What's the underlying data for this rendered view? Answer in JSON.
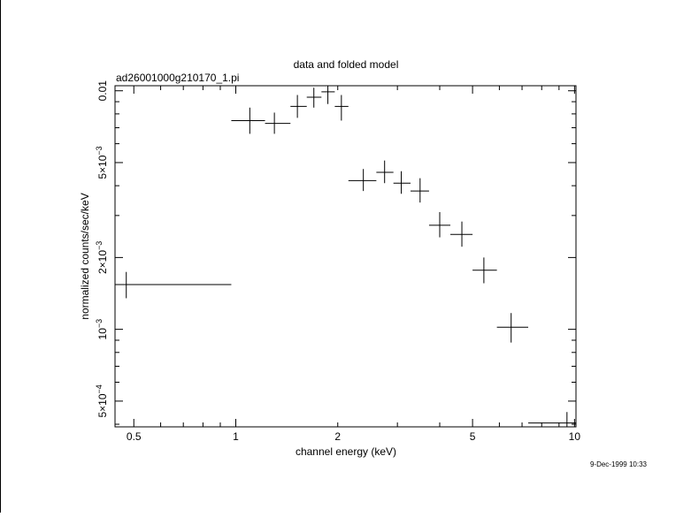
{
  "chart_data": {
    "type": "scatter",
    "title": "data and folded model",
    "subtitle": "ad26001000g210170_1.pi",
    "xlabel": "channel energy (keV)",
    "ylabel": "normalized counts/sec/keV",
    "x_scale": "log",
    "y_scale": "log",
    "xlim": [
      0.44,
      10.1
    ],
    "ylim": [
      0.00039,
      0.0105
    ],
    "grid": false,
    "x_ticks": [
      {
        "value": 0.5,
        "label": "0.5"
      },
      {
        "value": 1,
        "label": "1"
      },
      {
        "value": 2,
        "label": "2"
      },
      {
        "value": 5,
        "label": "5"
      },
      {
        "value": 10,
        "label": "10"
      }
    ],
    "y_ticks": [
      {
        "value": 0.01,
        "label": "0.01"
      },
      {
        "value": 0.005,
        "label": "5×10",
        "exp": "−3"
      },
      {
        "value": 0.002,
        "label": "2×10",
        "exp": "−3"
      },
      {
        "value": 0.001,
        "label": "10",
        "exp": "−3"
      },
      {
        "value": 0.0005,
        "label": "5×10",
        "exp": "−4"
      }
    ],
    "points": [
      {
        "x": 0.475,
        "x_lo": 0.44,
        "x_hi": 0.97,
        "y": 0.00154,
        "y_lo": 0.00135,
        "y_hi": 0.00174
      },
      {
        "x": 1.1,
        "x_lo": 0.97,
        "x_hi": 1.22,
        "y": 0.0075,
        "y_lo": 0.0066,
        "y_hi": 0.0085
      },
      {
        "x": 1.3,
        "x_lo": 1.22,
        "x_hi": 1.45,
        "y": 0.0073,
        "y_lo": 0.0066,
        "y_hi": 0.0081
      },
      {
        "x": 1.52,
        "x_lo": 1.45,
        "x_hi": 1.62,
        "y": 0.0086,
        "y_lo": 0.0077,
        "y_hi": 0.0096
      },
      {
        "x": 1.7,
        "x_lo": 1.62,
        "x_hi": 1.79,
        "y": 0.0094,
        "y_lo": 0.0085,
        "y_hi": 0.0103
      },
      {
        "x": 1.87,
        "x_lo": 1.79,
        "x_hi": 1.96,
        "y": 0.0099,
        "y_lo": 0.0088,
        "y_hi": 0.0109
      },
      {
        "x": 2.05,
        "x_lo": 1.96,
        "x_hi": 2.15,
        "y": 0.0086,
        "y_lo": 0.0075,
        "y_hi": 0.0096
      },
      {
        "x": 2.38,
        "x_lo": 2.15,
        "x_hi": 2.6,
        "y": 0.0042,
        "y_lo": 0.0038,
        "y_hi": 0.0047
      },
      {
        "x": 2.75,
        "x_lo": 2.6,
        "x_hi": 2.92,
        "y": 0.00455,
        "y_lo": 0.0041,
        "y_hi": 0.0051
      },
      {
        "x": 3.08,
        "x_lo": 2.92,
        "x_hi": 3.28,
        "y": 0.0041,
        "y_lo": 0.0037,
        "y_hi": 0.0046
      },
      {
        "x": 3.5,
        "x_lo": 3.28,
        "x_hi": 3.72,
        "y": 0.0038,
        "y_lo": 0.0034,
        "y_hi": 0.0043
      },
      {
        "x": 4.0,
        "x_lo": 3.72,
        "x_hi": 4.3,
        "y": 0.00273,
        "y_lo": 0.00243,
        "y_hi": 0.0031
      },
      {
        "x": 4.65,
        "x_lo": 4.3,
        "x_hi": 5.0,
        "y": 0.0025,
        "y_lo": 0.00222,
        "y_hi": 0.00283
      },
      {
        "x": 5.4,
        "x_lo": 5.0,
        "x_hi": 5.9,
        "y": 0.00177,
        "y_lo": 0.00156,
        "y_hi": 0.002
      },
      {
        "x": 6.5,
        "x_lo": 5.9,
        "x_hi": 7.3,
        "y": 0.00102,
        "y_lo": 0.00088,
        "y_hi": 0.00117
      },
      {
        "x": 9.5,
        "x_lo": 7.3,
        "x_hi": 10.1,
        "y": 0.000405,
        "y_lo": 0.00037,
        "y_hi": 0.00045
      }
    ]
  },
  "timestamp": "9-Dec-1999 10:33"
}
